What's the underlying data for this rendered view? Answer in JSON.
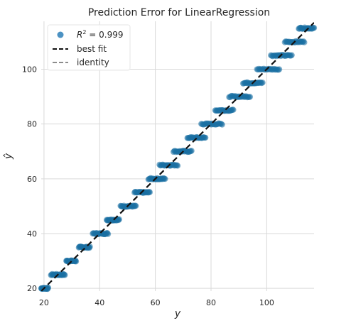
{
  "chart_data": {
    "type": "scatter",
    "title": "Prediction Error for LinearRegression",
    "xlabel": "y",
    "ylabel": "ŷ",
    "xlim": [
      19,
      117
    ],
    "ylim": [
      19,
      117.5
    ],
    "grid": true,
    "x_ticks": [
      20,
      40,
      60,
      80,
      100
    ],
    "y_ticks": [
      20,
      40,
      60,
      80,
      100
    ],
    "x_tick_labels": [
      "20",
      "40",
      "60",
      "80",
      "100"
    ],
    "y_tick_labels": [
      "20",
      "40",
      "60",
      "80",
      "100"
    ],
    "legend": {
      "position": "top-left",
      "entries": [
        {
          "label_prefix": "R",
          "label_sup": "2",
          "label_suffix": " = 0.999",
          "kind": "marker",
          "color": "#1f77b4"
        },
        {
          "label": "best fit",
          "kind": "dashed-line",
          "color": "#111111"
        },
        {
          "label": "identity",
          "kind": "dashed-line",
          "color": "#8c8c8c"
        }
      ]
    },
    "colors": {
      "points": "#1a6fa3",
      "best_fit": "#111111",
      "identity": "#8c8c8c",
      "grid": "#d9d9d9",
      "axes_background": "#ffffff"
    },
    "best_fit": {
      "slope": 1.0,
      "intercept": 0.0
    },
    "identity": {
      "slope": 1.0,
      "intercept": 0.0
    },
    "clusters": [
      {
        "y_hat": 20,
        "x_min": 19.0,
        "x_max": 21.5
      },
      {
        "y_hat": 25,
        "x_min": 22.5,
        "x_max": 27.5
      },
      {
        "y_hat": 30,
        "x_min": 28.0,
        "x_max": 31.5
      },
      {
        "y_hat": 35,
        "x_min": 32.5,
        "x_max": 36.5
      },
      {
        "y_hat": 40,
        "x_min": 37.5,
        "x_max": 43.0
      },
      {
        "y_hat": 45,
        "x_min": 42.5,
        "x_max": 47.0
      },
      {
        "y_hat": 50,
        "x_min": 47.5,
        "x_max": 53.0
      },
      {
        "y_hat": 55,
        "x_min": 52.5,
        "x_max": 58.0
      },
      {
        "y_hat": 60,
        "x_min": 57.5,
        "x_max": 63.5
      },
      {
        "y_hat": 65,
        "x_min": 61.5,
        "x_max": 68.0
      },
      {
        "y_hat": 70,
        "x_min": 66.5,
        "x_max": 73.0
      },
      {
        "y_hat": 75,
        "x_min": 71.5,
        "x_max": 78.0
      },
      {
        "y_hat": 80,
        "x_min": 76.5,
        "x_max": 84.0
      },
      {
        "y_hat": 85,
        "x_min": 81.5,
        "x_max": 88.0
      },
      {
        "y_hat": 90,
        "x_min": 86.5,
        "x_max": 94.0
      },
      {
        "y_hat": 95,
        "x_min": 91.5,
        "x_max": 98.5
      },
      {
        "y_hat": 100,
        "x_min": 96.5,
        "x_max": 104.5
      },
      {
        "y_hat": 105,
        "x_min": 101.5,
        "x_max": 109.0
      },
      {
        "y_hat": 110,
        "x_min": 106.5,
        "x_max": 113.5
      },
      {
        "y_hat": 115,
        "x_min": 111.5,
        "x_max": 117.0
      }
    ]
  }
}
